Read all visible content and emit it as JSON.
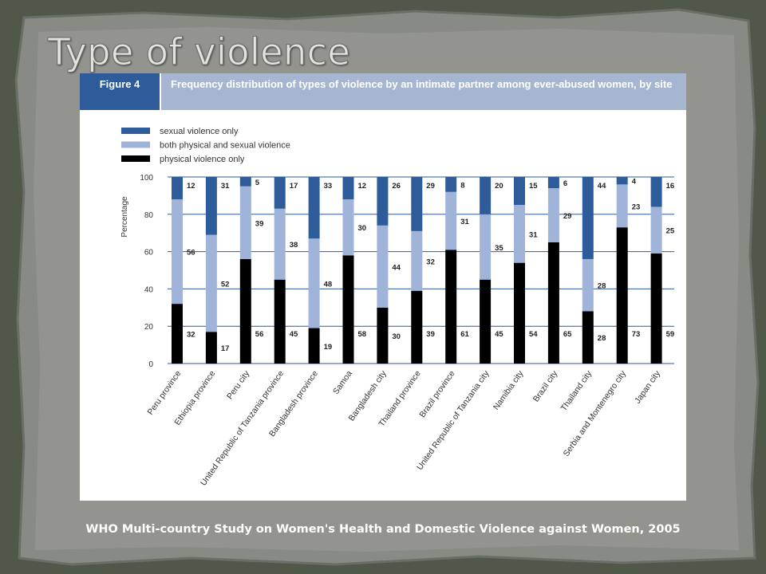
{
  "slide": {
    "title": "Type of violence",
    "source": "WHO Multi-country Study on Women's Health and Domestic Violence against Women, 2005"
  },
  "figure": {
    "label": "Figure 4",
    "caption": "Frequency distribution of types of violence by an intimate partner among ever-abused women, by site"
  },
  "colors": {
    "background": "#4f5849",
    "sexual": "#2e5c9a",
    "both": "#9fb4d8",
    "physical": "#000000",
    "grid": "#2e5c9a"
  },
  "chart_data": {
    "type": "bar",
    "stacked": true,
    "ylabel": "Percentage",
    "ylim": [
      0,
      100
    ],
    "yticks": [
      0,
      20,
      40,
      60,
      80,
      100
    ],
    "grid": true,
    "legend_position": "top-left",
    "categories": [
      "Peru province",
      "Ethiopia province",
      "Peru city",
      "United Republic of Tanzania province",
      "Bangladesh province",
      "Samoa",
      "Bangladesh city",
      "Thailand province",
      "Brazil province",
      "United Republic of Tanzania city",
      "Namibia city",
      "Brazil city",
      "Thailand city",
      "Serbia and Montenegro city",
      "Japan city"
    ],
    "series": [
      {
        "name": "physical violence only",
        "values": [
          32,
          17,
          56,
          45,
          19,
          58,
          30,
          39,
          61,
          45,
          54,
          65,
          28,
          73,
          59
        ]
      },
      {
        "name": "both physical and sexual violence",
        "values": [
          56,
          52,
          39,
          38,
          48,
          30,
          44,
          32,
          31,
          35,
          31,
          29,
          28,
          23,
          25
        ]
      },
      {
        "name": "sexual violence only",
        "values": [
          12,
          31,
          5,
          17,
          33,
          12,
          26,
          29,
          8,
          20,
          15,
          6,
          44,
          4,
          16
        ]
      }
    ],
    "legend": [
      "sexual violence only",
      "both physical and sexual violence",
      "physical violence only"
    ]
  }
}
